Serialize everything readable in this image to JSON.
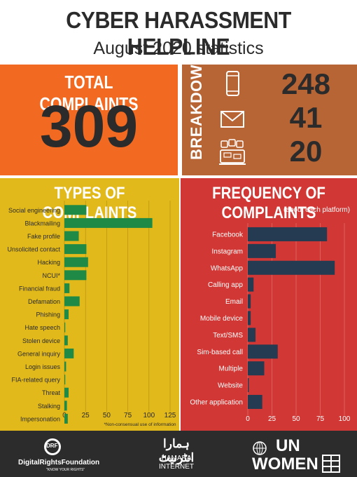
{
  "header": {
    "title": "CYBER HARASSMENT HELPLINE",
    "subtitle": "August 2020 statistics"
  },
  "total": {
    "label": "TOTAL COMPLAINTS",
    "value": "309"
  },
  "breakdown": {
    "label": "BREAKDOWN",
    "items": [
      {
        "icon": "phone-icon",
        "value": "248"
      },
      {
        "icon": "mail-icon",
        "value": "41"
      },
      {
        "icon": "social-media-icon",
        "value": "20"
      }
    ]
  },
  "chart_data": [
    {
      "type": "bar",
      "orientation": "horizontal",
      "title": "TYPES OF COMPLAINTS",
      "categories": [
        "Social engineering",
        "Blackmailing",
        "Fake profile",
        "Unsolicited contact",
        "Hacking",
        "NCUI*",
        "Financial fraud",
        "Defamation",
        "Phishing",
        "Hate speech",
        "Stolen device",
        "General inquiry",
        "Login issues",
        "FIA-related query",
        "Threat",
        "Stalking",
        "Impersonation"
      ],
      "values": [
        26,
        104,
        17,
        26,
        28,
        26,
        6,
        18,
        5,
        1,
        4,
        11,
        2,
        1,
        5,
        3,
        4
      ],
      "xlim": [
        0,
        125
      ],
      "xticks": [
        0,
        25,
        50,
        75,
        100,
        125
      ],
      "footnote": "*Non-consensual use of information",
      "bar_color": "#1f8a45"
    },
    {
      "type": "bar",
      "orientation": "horizontal",
      "title": "FREQUENCY OF COMPLAINTS",
      "subtitle": "(about each platform)",
      "categories": [
        "Facebook",
        "Instagram",
        "WhatsApp",
        "Calling app",
        "Email",
        "Mobile device",
        "Text/SMS",
        "Sim-based call",
        "Multiple",
        "Website",
        "Other application"
      ],
      "values": [
        82,
        29,
        90,
        6,
        3,
        3,
        8,
        31,
        17,
        1,
        15
      ],
      "xlim": [
        0,
        100
      ],
      "xticks": [
        0,
        25,
        50,
        75,
        100
      ],
      "bar_color": "#253b52"
    }
  ],
  "footer": {
    "drf": {
      "badge": "DRF",
      "name": "DigitalRightsFoundation",
      "tagline": "\"KNOW YOUR RIGHTS\""
    },
    "hamara": {
      "urdu": "ہمارا انٹرنیٹ",
      "line1": "HAMARA",
      "line2": "INTERNET"
    },
    "unwomen": {
      "line1": "UN",
      "line2": "WOMEN"
    }
  },
  "colors": {
    "total_bg": "#f26a21",
    "breakdown_bg": "#b86535",
    "types_bg": "#e2b91b",
    "freq_bg": "#d13734",
    "footer_bg": "#2c2c2c"
  }
}
